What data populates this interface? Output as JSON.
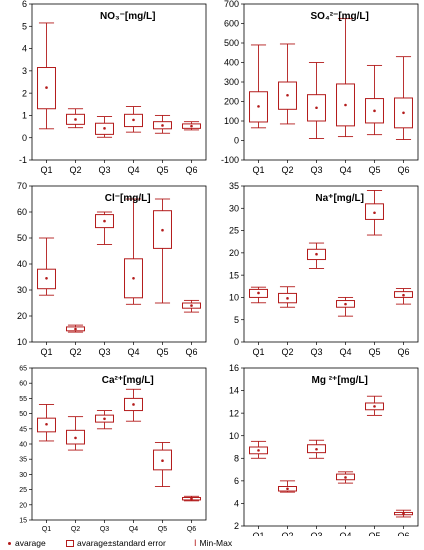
{
  "chart_data": [
    {
      "type": "box",
      "title": "NO₃⁻[mg/L]",
      "categories": [
        "Q1",
        "Q2",
        "Q3",
        "Q4",
        "Q5",
        "Q6"
      ],
      "ylim": [
        -1,
        6
      ],
      "yticks": [
        "-1",
        "0",
        "1",
        "2",
        "3",
        "4",
        "5",
        "6"
      ],
      "yticks_values": [
        -1,
        0,
        1,
        2,
        3,
        4,
        5,
        6
      ],
      "series": [
        {
          "category": "Q1",
          "mean": 2.25,
          "se_low": 1.3,
          "se_high": 3.15,
          "min": 0.4,
          "max": 5.15
        },
        {
          "category": "Q2",
          "mean": 0.82,
          "se_low": 0.6,
          "se_high": 1.05,
          "min": 0.45,
          "max": 1.3
        },
        {
          "category": "Q3",
          "mean": 0.42,
          "se_low": 0.15,
          "se_high": 0.65,
          "min": 0.02,
          "max": 0.95
        },
        {
          "category": "Q4",
          "mean": 0.8,
          "se_low": 0.5,
          "se_high": 1.05,
          "min": 0.25,
          "max": 1.4
        },
        {
          "category": "Q5",
          "mean": 0.55,
          "se_low": 0.4,
          "se_high": 0.72,
          "min": 0.2,
          "max": 1.0
        },
        {
          "category": "Q6",
          "mean": 0.52,
          "se_low": 0.42,
          "se_high": 0.62,
          "min": 0.35,
          "max": 0.72
        }
      ]
    },
    {
      "type": "box",
      "title": "SO₄²⁻[mg/L]",
      "categories": [
        "Q1",
        "Q2",
        "Q3",
        "Q4",
        "Q5",
        "Q6"
      ],
      "ylim": [
        -100,
        700
      ],
      "yticks": [
        "-100",
        "0",
        "100",
        "200",
        "300",
        "400",
        "500",
        "600",
        "700"
      ],
      "yticks_values": [
        -100,
        0,
        100,
        200,
        300,
        400,
        500,
        600,
        700
      ],
      "series": [
        {
          "category": "Q1",
          "mean": 175,
          "se_low": 95,
          "se_high": 250,
          "min": 65,
          "max": 490
        },
        {
          "category": "Q2",
          "mean": 232,
          "se_low": 160,
          "se_high": 300,
          "min": 85,
          "max": 495
        },
        {
          "category": "Q3",
          "mean": 168,
          "se_low": 100,
          "se_high": 235,
          "min": 10,
          "max": 400
        },
        {
          "category": "Q4",
          "mean": 182,
          "se_low": 75,
          "se_high": 290,
          "min": 20,
          "max": 625
        },
        {
          "category": "Q5",
          "mean": 152,
          "se_low": 90,
          "se_high": 215,
          "min": 30,
          "max": 385
        },
        {
          "category": "Q6",
          "mean": 142,
          "se_low": 65,
          "se_high": 218,
          "min": 5,
          "max": 430
        }
      ]
    },
    {
      "type": "box",
      "title": "Cl⁻[mg/L]",
      "categories": [
        "Q1",
        "Q2",
        "Q3",
        "Q4",
        "Q5",
        "Q6"
      ],
      "ylim": [
        10,
        70
      ],
      "yticks": [
        "10",
        "20",
        "30",
        "40",
        "50",
        "60",
        "70"
      ],
      "yticks_values": [
        10,
        20,
        30,
        40,
        50,
        60,
        70
      ],
      "series": [
        {
          "category": "Q1",
          "mean": 34.5,
          "se_low": 30.5,
          "se_high": 38.0,
          "min": 28.0,
          "max": 50.0
        },
        {
          "category": "Q2",
          "mean": 15.0,
          "se_low": 14.3,
          "se_high": 15.8,
          "min": 13.8,
          "max": 16.5
        },
        {
          "category": "Q3",
          "mean": 56.5,
          "se_low": 54.0,
          "se_high": 59.0,
          "min": 47.5,
          "max": 60.0
        },
        {
          "category": "Q4",
          "mean": 34.5,
          "se_low": 27.0,
          "se_high": 42.0,
          "min": 24.5,
          "max": 65.0
        },
        {
          "category": "Q5",
          "mean": 53.0,
          "se_low": 46.0,
          "se_high": 60.5,
          "min": 25.0,
          "max": 65.0
        },
        {
          "category": "Q6",
          "mean": 24.0,
          "se_low": 23.0,
          "se_high": 25.0,
          "min": 21.5,
          "max": 26.0
        }
      ]
    },
    {
      "type": "box",
      "title": "Na⁺[mg/L]",
      "categories": [
        "Q1",
        "Q2",
        "Q3",
        "Q4",
        "Q5",
        "Q6"
      ],
      "ylim": [
        0,
        35
      ],
      "yticks": [
        "0",
        "5",
        "10",
        "15",
        "20",
        "25",
        "30",
        "35"
      ],
      "yticks_values": [
        0,
        5,
        10,
        15,
        20,
        25,
        30,
        35
      ],
      "series": [
        {
          "category": "Q1",
          "mean": 11.0,
          "se_low": 10.0,
          "se_high": 11.8,
          "min": 8.8,
          "max": 12.3
        },
        {
          "category": "Q2",
          "mean": 9.8,
          "se_low": 8.8,
          "se_high": 10.9,
          "min": 7.8,
          "max": 12.4
        },
        {
          "category": "Q3",
          "mean": 19.7,
          "se_low": 18.5,
          "se_high": 20.8,
          "min": 16.5,
          "max": 22.2
        },
        {
          "category": "Q4",
          "mean": 8.5,
          "se_low": 7.8,
          "se_high": 9.3,
          "min": 5.8,
          "max": 10.0
        },
        {
          "category": "Q5",
          "mean": 29.0,
          "se_low": 27.5,
          "se_high": 31.0,
          "min": 24.0,
          "max": 34.0
        },
        {
          "category": "Q6",
          "mean": 10.5,
          "se_low": 10.0,
          "se_high": 11.3,
          "min": 8.5,
          "max": 12.0
        }
      ]
    },
    {
      "type": "box",
      "title": "Ca²⁺[mg/L]",
      "categories": [
        "Q1",
        "Q2",
        "Q3",
        "Q4",
        "Q5",
        "Q6"
      ],
      "ylim": [
        15,
        65
      ],
      "yticks": [
        "15",
        "20",
        "25",
        "30",
        "35",
        "40",
        "45",
        "50",
        "55",
        "60",
        "65"
      ],
      "yticks_values": [
        15,
        20,
        25,
        30,
        35,
        40,
        45,
        50,
        55,
        60,
        65
      ],
      "series": [
        {
          "category": "Q1",
          "mean": 46.5,
          "se_low": 44.0,
          "se_high": 48.5,
          "min": 41.0,
          "max": 53.0
        },
        {
          "category": "Q2",
          "mean": 42.0,
          "se_low": 40.0,
          "se_high": 44.5,
          "min": 38.0,
          "max": 49.0
        },
        {
          "category": "Q3",
          "mean": 48.3,
          "se_low": 47.2,
          "se_high": 49.5,
          "min": 45.0,
          "max": 51.0
        },
        {
          "category": "Q4",
          "mean": 53.0,
          "se_low": 51.0,
          "se_high": 55.0,
          "min": 47.5,
          "max": 58.0
        },
        {
          "category": "Q5",
          "mean": 34.5,
          "se_low": 31.5,
          "se_high": 38.0,
          "min": 26.0,
          "max": 40.5
        },
        {
          "category": "Q6",
          "mean": 22.0,
          "se_low": 21.6,
          "se_high": 22.4,
          "min": 21.3,
          "max": 22.8
        }
      ]
    },
    {
      "type": "box",
      "title": "Mg ²⁺[mg/L]",
      "categories": [
        "Q1",
        "Q2",
        "Q3",
        "Q4",
        "Q5",
        "Q6"
      ],
      "ylim": [
        2,
        16
      ],
      "yticks": [
        "2",
        "4",
        "6",
        "8",
        "10",
        "12",
        "14",
        "16"
      ],
      "yticks_values": [
        2,
        4,
        6,
        8,
        10,
        12,
        14,
        16
      ],
      "series": [
        {
          "category": "Q1",
          "mean": 8.7,
          "se_low": 8.4,
          "se_high": 9.0,
          "min": 8.0,
          "max": 9.5
        },
        {
          "category": "Q2",
          "mean": 5.3,
          "se_low": 5.1,
          "se_high": 5.5,
          "min": 5.0,
          "max": 6.0
        },
        {
          "category": "Q3",
          "mean": 8.8,
          "se_low": 8.5,
          "se_high": 9.2,
          "min": 8.0,
          "max": 9.6
        },
        {
          "category": "Q4",
          "mean": 6.3,
          "se_low": 6.1,
          "se_high": 6.6,
          "min": 5.8,
          "max": 6.8
        },
        {
          "category": "Q5",
          "mean": 12.6,
          "se_low": 12.3,
          "se_high": 12.9,
          "min": 11.8,
          "max": 13.5
        },
        {
          "category": "Q6",
          "mean": 3.1,
          "se_low": 3.0,
          "se_high": 3.2,
          "min": 2.8,
          "max": 3.4
        }
      ]
    }
  ],
  "legend": {
    "average": "avarage",
    "se": "avarage±standard error",
    "range": "Min-Max"
  },
  "colors": {
    "series": "#b31b1b",
    "axis": "#000000",
    "tick_text": "#000000"
  }
}
